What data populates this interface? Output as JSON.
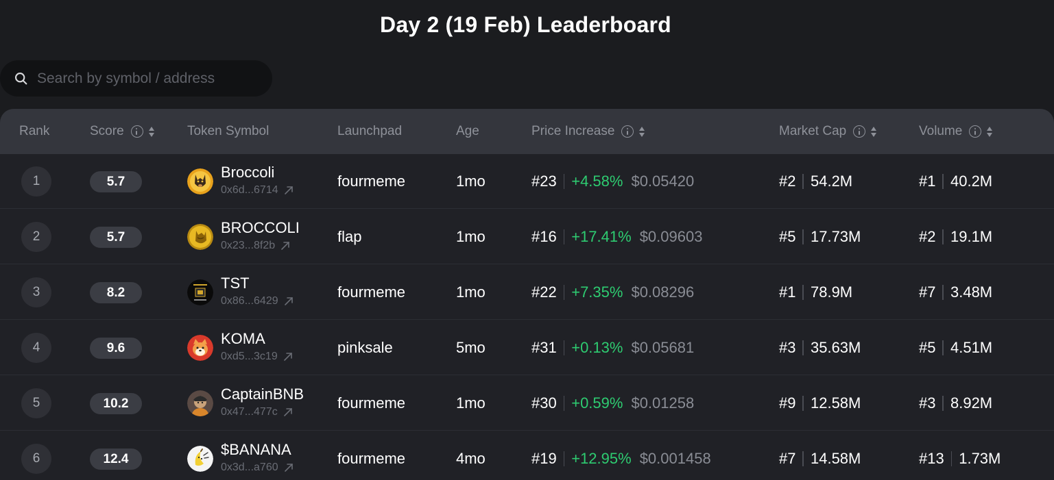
{
  "title": "Day 2 (19 Feb) Leaderboard",
  "search": {
    "placeholder": "Search by symbol / address",
    "value": ""
  },
  "columns": {
    "rank": "Rank",
    "score": "Score",
    "symbol": "Token Symbol",
    "launchpad": "Launchpad",
    "age": "Age",
    "price_increase": "Price Increase",
    "market_cap": "Market Cap",
    "volume": "Volume"
  },
  "colors": {
    "background": "#1b1c1f",
    "header": "#34363d",
    "positive": "#2ecc71",
    "muted": "#8e9199"
  },
  "rows": [
    {
      "rank": "1",
      "score": "5.7",
      "symbol": "Broccoli",
      "address": "0x6d...6714",
      "avatar": "dog-coin-icon",
      "launchpad": "fourmeme",
      "age": "1mo",
      "price_rank": "#23",
      "price_pct": "+4.58%",
      "price": "$0.05420",
      "mcap_rank": "#2",
      "mcap": "54.2M",
      "vol_rank": "#1",
      "vol": "40.2M"
    },
    {
      "rank": "2",
      "score": "5.7",
      "symbol": "BROCCOLI",
      "address": "0x23...8f2b",
      "avatar": "gold-dog-icon",
      "launchpad": "flap",
      "age": "1mo",
      "price_rank": "#16",
      "price_pct": "+17.41%",
      "price": "$0.09603",
      "mcap_rank": "#5",
      "mcap": "17.73M",
      "vol_rank": "#2",
      "vol": "19.1M"
    },
    {
      "rank": "3",
      "score": "8.2",
      "symbol": "TST",
      "address": "0x86...6429",
      "avatar": "test-token-icon",
      "launchpad": "fourmeme",
      "age": "1mo",
      "price_rank": "#22",
      "price_pct": "+7.35%",
      "price": "$0.08296",
      "mcap_rank": "#1",
      "mcap": "78.9M",
      "vol_rank": "#7",
      "vol": "3.48M"
    },
    {
      "rank": "4",
      "score": "9.6",
      "symbol": "KOMA",
      "address": "0xd5...3c19",
      "avatar": "shiba-icon",
      "launchpad": "pinksale",
      "age": "5mo",
      "price_rank": "#31",
      "price_pct": "+0.13%",
      "price": "$0.05681",
      "mcap_rank": "#3",
      "mcap": "35.63M",
      "vol_rank": "#5",
      "vol": "4.51M"
    },
    {
      "rank": "5",
      "score": "10.2",
      "symbol": "CaptainBNB",
      "address": "0x47...477c",
      "avatar": "captain-icon",
      "launchpad": "fourmeme",
      "age": "1mo",
      "price_rank": "#30",
      "price_pct": "+0.59%",
      "price": "$0.01258",
      "mcap_rank": "#9",
      "mcap": "12.58M",
      "vol_rank": "#3",
      "vol": "8.92M"
    },
    {
      "rank": "6",
      "score": "12.4",
      "symbol": "$BANANA",
      "address": "0x3d...a760",
      "avatar": "banana-icon",
      "launchpad": "fourmeme",
      "age": "4mo",
      "price_rank": "#19",
      "price_pct": "+12.95%",
      "price": "$0.001458",
      "mcap_rank": "#7",
      "mcap": "14.58M",
      "vol_rank": "#13",
      "vol": "1.73M"
    }
  ]
}
